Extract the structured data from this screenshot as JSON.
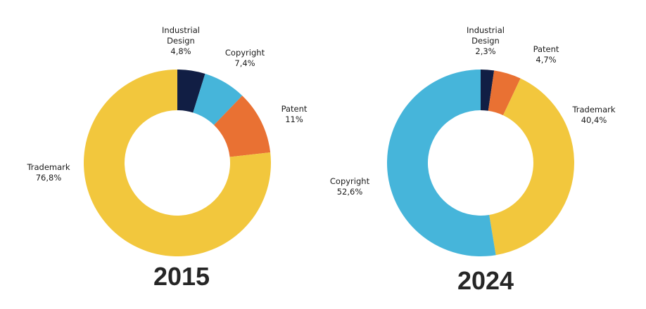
{
  "colors": {
    "industrial_design": "#111e44",
    "copyright": "#46b5da",
    "patent": "#e97133",
    "trademark": "#f2c73d"
  },
  "chart_data": [
    {
      "type": "pie",
      "title": "2015",
      "donut": true,
      "slices": [
        {
          "label_lines": [
            "Industrial",
            "Design"
          ],
          "value_text": "4,8%",
          "value": 4.8,
          "color_key": "industrial_design"
        },
        {
          "label_lines": [
            "Copyright"
          ],
          "value_text": "7,4%",
          "value": 7.4,
          "color_key": "copyright"
        },
        {
          "label_lines": [
            "Patent"
          ],
          "value_text": "11%",
          "value": 11,
          "color_key": "patent"
        },
        {
          "label_lines": [
            "Trademark"
          ],
          "value_text": "76,8%",
          "value": 76.8,
          "color_key": "trademark"
        }
      ]
    },
    {
      "type": "pie",
      "title": "2024",
      "donut": true,
      "slices": [
        {
          "label_lines": [
            "Industrial",
            "Design"
          ],
          "value_text": "2,3%",
          "value": 2.3,
          "color_key": "industrial_design"
        },
        {
          "label_lines": [
            "Patent"
          ],
          "value_text": "4,7%",
          "value": 4.7,
          "color_key": "patent"
        },
        {
          "label_lines": [
            "Trademark"
          ],
          "value_text": "40,4%",
          "value": 40.4,
          "color_key": "trademark"
        },
        {
          "label_lines": [
            "Copyright"
          ],
          "value_text": "52,6%",
          "value": 52.6,
          "color_key": "copyright"
        }
      ]
    }
  ]
}
